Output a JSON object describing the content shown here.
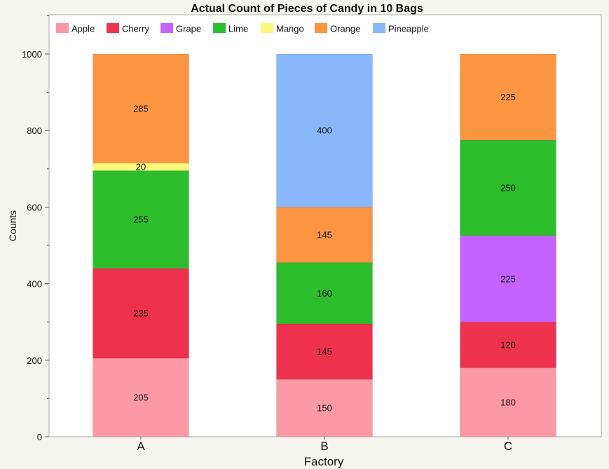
{
  "chart_data": {
    "type": "bar",
    "stacked": true,
    "title": "Actual Count of Pieces of Candy in 10 Bags",
    "xlabel": "Factory",
    "ylabel": "Counts",
    "ylim": [
      0,
      1100
    ],
    "yticks": [
      0,
      200,
      400,
      600,
      800,
      1000
    ],
    "categories": [
      "A",
      "B",
      "C"
    ],
    "legend_position": "top",
    "grid": false,
    "series": [
      {
        "name": "Apple",
        "color": "#fb99a5",
        "values": [
          205,
          150,
          180
        ]
      },
      {
        "name": "Cherry",
        "color": "#ee324d",
        "values": [
          235,
          145,
          120
        ]
      },
      {
        "name": "Grape",
        "color": "#c463ff",
        "values": [
          0,
          0,
          225
        ]
      },
      {
        "name": "Lime",
        "color": "#2dbd2d",
        "values": [
          255,
          160,
          250
        ]
      },
      {
        "name": "Mango",
        "color": "#fbf87c",
        "values": [
          20,
          0,
          0
        ]
      },
      {
        "name": "Orange",
        "color": "#fb9542",
        "values": [
          285,
          145,
          225
        ]
      },
      {
        "name": "Pineapple",
        "color": "#88b8fb",
        "values": [
          0,
          400,
          0
        ]
      }
    ]
  }
}
